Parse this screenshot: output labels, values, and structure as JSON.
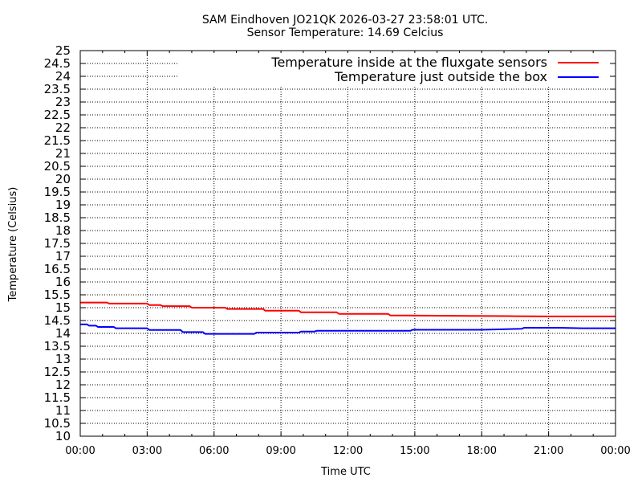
{
  "header": {
    "title_line1": "SAM Eindhoven JO21QK 2026-03-27 23:58:01 UTC.",
    "title_line2": "Sensor Temperature: 14.69 Celcius"
  },
  "chart_data": {
    "type": "line",
    "xlabel": "Time UTC",
    "ylabel": "Temperature (Celsius)",
    "xlim": [
      0,
      24
    ],
    "ylim": [
      10,
      25
    ],
    "grid": true,
    "legend_position": "top-right",
    "x_tick_labels": [
      "00:00",
      "03:00",
      "06:00",
      "09:00",
      "12:00",
      "15:00",
      "18:00",
      "21:00",
      "00:00"
    ],
    "y_tick_labels": [
      "10",
      "10.5",
      "11",
      "11.5",
      "12",
      "12.5",
      "13",
      "13.5",
      "14",
      "14.5",
      "15",
      "15.5",
      "16",
      "16.5",
      "17",
      "17.5",
      "18",
      "18.5",
      "19",
      "19.5",
      "20",
      "20.5",
      "21",
      "21.5",
      "22",
      "22.5",
      "23",
      "23.5",
      "24",
      "24.5",
      "25"
    ],
    "series": [
      {
        "name": "Temperature inside at the fluxgate sensors",
        "color": "#ff0000",
        "x": [
          0,
          1.2,
          1.3,
          3.0,
          3.1,
          3.6,
          3.7,
          4.9,
          5.0,
          6.5,
          6.6,
          8.2,
          8.3,
          9.8,
          9.9,
          11.5,
          11.6,
          13.8,
          13.9,
          17.5,
          19.5,
          21.0,
          22.5,
          24.0
        ],
        "values": [
          15.2,
          15.2,
          15.16,
          15.16,
          15.1,
          15.1,
          15.06,
          15.06,
          15.0,
          15.0,
          14.95,
          14.95,
          14.88,
          14.88,
          14.82,
          14.82,
          14.76,
          14.76,
          14.7,
          14.68,
          14.67,
          14.66,
          14.66,
          14.66
        ]
      },
      {
        "name": "Temperature just outside the box",
        "color": "#0000ff",
        "x": [
          0,
          0.3,
          0.4,
          0.7,
          0.8,
          1.5,
          1.6,
          3.0,
          3.1,
          4.5,
          4.6,
          5.5,
          5.6,
          7.8,
          7.9,
          9.8,
          9.9,
          10.5,
          10.6,
          14.8,
          14.9,
          18.0,
          19.8,
          19.9,
          21.5,
          22.5,
          24.0
        ],
        "values": [
          14.35,
          14.35,
          14.3,
          14.3,
          14.25,
          14.25,
          14.2,
          14.2,
          14.13,
          14.13,
          14.05,
          14.05,
          13.98,
          13.98,
          14.03,
          14.03,
          14.07,
          14.07,
          14.1,
          14.1,
          14.14,
          14.14,
          14.18,
          14.22,
          14.22,
          14.2,
          14.2
        ]
      }
    ]
  }
}
